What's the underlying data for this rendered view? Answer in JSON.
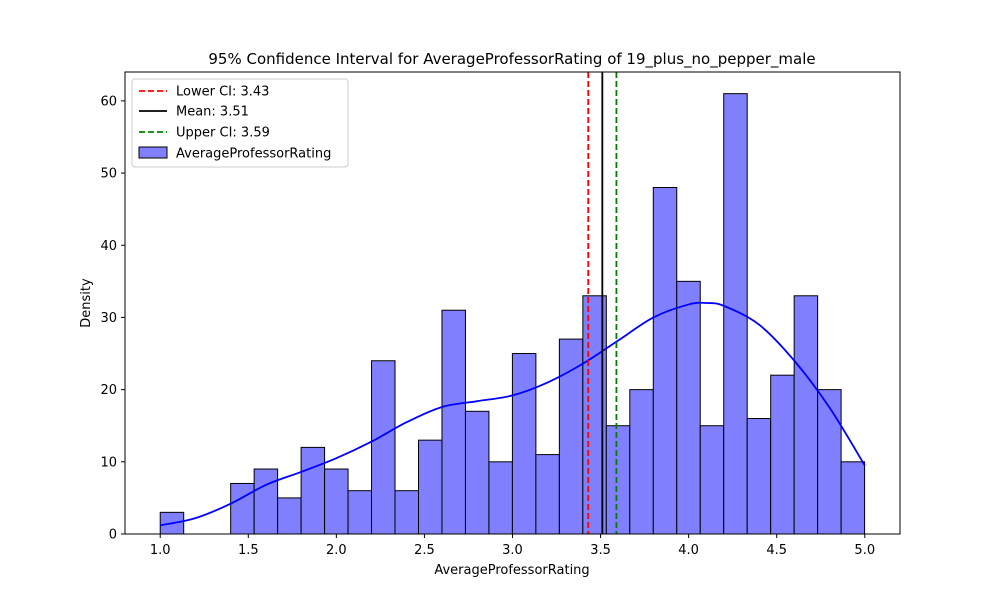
{
  "chart_data": {
    "type": "bar",
    "title": "95% Confidence Interval for AverageProfessorRating of 19_plus_no_pepper_male",
    "xlabel": "AverageProfessorRating",
    "ylabel": "Density",
    "xlim": [
      0.8,
      5.2
    ],
    "ylim": [
      0,
      64
    ],
    "xticks": [
      "1.0",
      "1.5",
      "2.0",
      "2.5",
      "3.0",
      "3.5",
      "4.0",
      "4.5",
      "5.0"
    ],
    "yticks": [
      "0",
      "10",
      "20",
      "30",
      "40",
      "50",
      "60"
    ],
    "grid": false,
    "legend_position": "top-left",
    "histogram": {
      "name": "AverageProfessorRating",
      "color": "#8080ff",
      "bin_start": 1.0,
      "bin_width": 0.1333,
      "counts": [
        3,
        0,
        0,
        7,
        9,
        5,
        12,
        9,
        6,
        24,
        6,
        13,
        31,
        17,
        10,
        25,
        11,
        27,
        33,
        15,
        20,
        48,
        35,
        15,
        61,
        16,
        22,
        33,
        20,
        10
      ]
    },
    "kde": {
      "color": "#0000ff",
      "x": [
        1.0,
        1.2,
        1.4,
        1.6,
        1.8,
        2.0,
        2.2,
        2.4,
        2.6,
        2.8,
        3.0,
        3.2,
        3.4,
        3.6,
        3.8,
        4.0,
        4.1,
        4.2,
        4.4,
        4.6,
        4.8,
        5.0
      ],
      "y": [
        1.2,
        2.2,
        4.2,
        6.8,
        8.6,
        10.5,
        12.8,
        15.5,
        17.6,
        18.4,
        19.2,
        21.0,
        23.6,
        26.8,
        30.0,
        31.8,
        32.0,
        31.6,
        29.0,
        24.0,
        17.5,
        9.5
      ]
    },
    "ci_lines": [
      {
        "label": "Lower CI: 3.43",
        "value": 3.43,
        "color": "#ff0000",
        "style": "dashed"
      },
      {
        "label": "Mean: 3.51",
        "value": 3.51,
        "color": "#000000",
        "style": "solid"
      },
      {
        "label": "Upper CI: 3.59",
        "value": 3.59,
        "color": "#008000",
        "style": "dashed"
      }
    ]
  }
}
